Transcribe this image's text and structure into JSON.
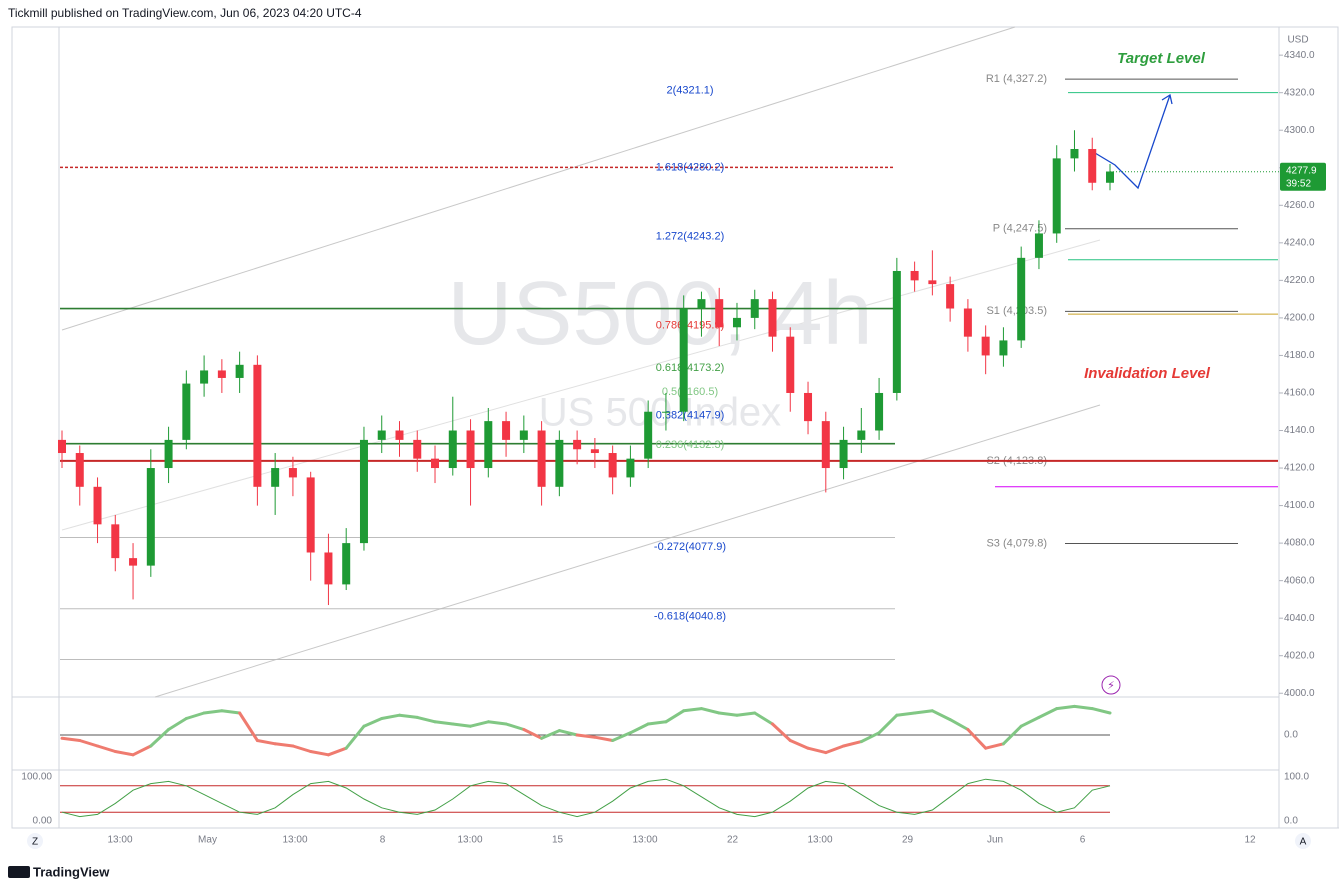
{
  "header": "Tickmill published on TradingView.com, Jun 06, 2023 04:20 UTC-4",
  "footer": "TradingView",
  "buttons": [
    "Z",
    "A"
  ],
  "chart_data": {
    "type": "candlestick",
    "title": "US500, 4h",
    "subtitle": "US 500 Index",
    "currency": "USD",
    "up_color": "#1e9a34",
    "down_color": "#f23645",
    "ylim": [
      3998,
      4355
    ],
    "yticks": [
      {
        "value": 4000,
        "label": "4000.0"
      },
      {
        "value": 4020,
        "label": "4020.0"
      },
      {
        "value": 4040,
        "label": "4040.0"
      },
      {
        "value": 4060,
        "label": "4060.0"
      },
      {
        "value": 4080,
        "label": "4080.0"
      },
      {
        "value": 4100,
        "label": "4100.0"
      },
      {
        "value": 4120,
        "label": "4120.0"
      },
      {
        "value": 4140,
        "label": "4140.0"
      },
      {
        "value": 4160,
        "label": "4160.0"
      },
      {
        "value": 4180,
        "label": "4180.0"
      },
      {
        "value": 4200,
        "label": "4200.0"
      },
      {
        "value": 4220,
        "label": "4220.0"
      },
      {
        "value": 4240,
        "label": "4240.0"
      },
      {
        "value": 4260,
        "label": "4260.0"
      },
      {
        "value": 4280,
        "label": "4280.0"
      },
      {
        "value": 4300,
        "label": "4300.0"
      },
      {
        "value": 4320,
        "label": "4320.0"
      },
      {
        "value": 4340,
        "label": "4340.0"
      }
    ],
    "last_price": 4277.9,
    "countdown": "39:52",
    "xlabels": [
      "13:00",
      "May",
      "13:00",
      "8",
      "13:00",
      "15",
      "13:00",
      "22",
      "13:00",
      "29",
      "Jun",
      "6",
      "12"
    ],
    "ohlc": [
      [
        4135,
        4140,
        4120,
        4128
      ],
      [
        4128,
        4132,
        4100,
        4110
      ],
      [
        4110,
        4115,
        4080,
        4090
      ],
      [
        4090,
        4095,
        4065,
        4072
      ],
      [
        4072,
        4080,
        4050,
        4068
      ],
      [
        4068,
        4130,
        4062,
        4120
      ],
      [
        4120,
        4142,
        4112,
        4135
      ],
      [
        4135,
        4172,
        4130,
        4165
      ],
      [
        4165,
        4180,
        4158,
        4172
      ],
      [
        4172,
        4178,
        4160,
        4168
      ],
      [
        4168,
        4182,
        4160,
        4175
      ],
      [
        4175,
        4180,
        4100,
        4110
      ],
      [
        4110,
        4128,
        4095,
        4120
      ],
      [
        4120,
        4126,
        4105,
        4115
      ],
      [
        4115,
        4118,
        4060,
        4075
      ],
      [
        4075,
        4085,
        4047,
        4058
      ],
      [
        4058,
        4088,
        4055,
        4080
      ],
      [
        4080,
        4142,
        4076,
        4135
      ],
      [
        4135,
        4148,
        4128,
        4140
      ],
      [
        4140,
        4145,
        4126,
        4135
      ],
      [
        4135,
        4140,
        4118,
        4125
      ],
      [
        4125,
        4132,
        4112,
        4120
      ],
      [
        4120,
        4158,
        4116,
        4140
      ],
      [
        4140,
        4146,
        4100,
        4120
      ],
      [
        4120,
        4152,
        4115,
        4145
      ],
      [
        4145,
        4150,
        4126,
        4135
      ],
      [
        4135,
        4148,
        4128,
        4140
      ],
      [
        4140,
        4145,
        4100,
        4110
      ],
      [
        4110,
        4140,
        4105,
        4135
      ],
      [
        4135,
        4140,
        4122,
        4130
      ],
      [
        4130,
        4136,
        4120,
        4128
      ],
      [
        4128,
        4132,
        4106,
        4115
      ],
      [
        4115,
        4132,
        4110,
        4125
      ],
      [
        4125,
        4156,
        4120,
        4150
      ],
      [
        4150,
        4160,
        4140,
        4150
      ],
      [
        4150,
        4212,
        4145,
        4205
      ],
      [
        4205,
        4214,
        4190,
        4210
      ],
      [
        4210,
        4216,
        4185,
        4195
      ],
      [
        4195,
        4208,
        4188,
        4200
      ],
      [
        4200,
        4215,
        4194,
        4210
      ],
      [
        4210,
        4214,
        4182,
        4190
      ],
      [
        4190,
        4195,
        4150,
        4160
      ],
      [
        4160,
        4166,
        4138,
        4145
      ],
      [
        4145,
        4150,
        4107,
        4120
      ],
      [
        4120,
        4142,
        4114,
        4135
      ],
      [
        4135,
        4152,
        4128,
        4140
      ],
      [
        4140,
        4168,
        4135,
        4160
      ],
      [
        4160,
        4232,
        4156,
        4225
      ],
      [
        4225,
        4230,
        4214,
        4220
      ],
      [
        4220,
        4236,
        4212,
        4218
      ],
      [
        4218,
        4222,
        4198,
        4205
      ],
      [
        4205,
        4210,
        4182,
        4190
      ],
      [
        4190,
        4196,
        4170,
        4180
      ],
      [
        4180,
        4195,
        4174,
        4188
      ],
      [
        4188,
        4238,
        4184,
        4232
      ],
      [
        4232,
        4252,
        4226,
        4245
      ],
      [
        4245,
        4292,
        4240,
        4285
      ],
      [
        4285,
        4300,
        4278,
        4290
      ],
      [
        4290,
        4296,
        4268,
        4272
      ],
      [
        4272,
        4282,
        4268,
        4278
      ]
    ],
    "fib_levels": [
      {
        "label": "2(4321.1)",
        "value": 4321.1,
        "color": "#1848cc"
      },
      {
        "label": "1.618(4280.2)",
        "value": 4280.2,
        "color": "#1848cc"
      },
      {
        "label": "1.272(4243.2)",
        "value": 4243.2,
        "color": "#1848cc"
      },
      {
        "label": "0.786(4195.9)",
        "value": 4195.9,
        "color": "#e53935"
      },
      {
        "label": "0.618(4173.2)",
        "value": 4173.2,
        "color": "#43a047"
      },
      {
        "label": "0.5(4160.5)",
        "value": 4160.5,
        "color": "#81c784"
      },
      {
        "label": "0.382(4147.9)",
        "value": 4147.9,
        "color": "#1848cc"
      },
      {
        "label": "0.236(4132.3)",
        "value": 4132.3,
        "color": "#81c784"
      },
      {
        "label": "-0.272(4077.9)",
        "value": 4077.9,
        "color": "#1848cc"
      },
      {
        "label": "-0.618(4040.8)",
        "value": 4040.8,
        "color": "#1848cc"
      }
    ],
    "fib_lines": [
      {
        "value": 4280.2,
        "color": "#c62828"
      },
      {
        "value": 4205,
        "color": "#2e7d32"
      },
      {
        "value": 4133,
        "color": "#2e7d32"
      },
      {
        "value": 4083,
        "color": "#bdbdbd"
      },
      {
        "value": 4045,
        "color": "#bdbdbd"
      },
      {
        "value": 4018,
        "color": "#bdbdbd"
      }
    ],
    "pivots": [
      {
        "label": "R1 (4,327.2)",
        "value": 4327.2
      },
      {
        "label": "P (4,247.5)",
        "value": 4247.5
      },
      {
        "label": "S1 (4,203.5)",
        "value": 4203.5
      },
      {
        "label": "S2 (4,123.8)",
        "value": 4123.8
      },
      {
        "label": "S3 (4,079.8)",
        "value": 4079.8
      }
    ],
    "extra_lines": [
      {
        "value": 4320,
        "color": "#26c281"
      },
      {
        "value": 4231,
        "color": "#26c281"
      },
      {
        "value": 4202,
        "color": "#c9a227"
      },
      {
        "value": 4110,
        "color": "#d500f9"
      },
      {
        "value": 4123.8,
        "color": "#c62828"
      }
    ],
    "annotations": [
      {
        "text": "Target Level",
        "value": 4338,
        "color": "#2e9e3e"
      },
      {
        "text": "Invalidation Level",
        "value": 4170,
        "color": "#e53935"
      }
    ],
    "oscillator": {
      "ylim": [
        -30,
        30
      ],
      "yticks": [
        {
          "value": 0,
          "label": "0.0"
        }
      ],
      "values": [
        -3,
        -5,
        -10,
        -15,
        -18,
        -10,
        5,
        15,
        20,
        22,
        20,
        -5,
        -8,
        -10,
        -15,
        -18,
        -12,
        8,
        15,
        18,
        16,
        12,
        10,
        8,
        12,
        10,
        5,
        -3,
        4,
        0,
        -2,
        -5,
        2,
        10,
        12,
        22,
        24,
        20,
        18,
        20,
        10,
        -5,
        -12,
        -16,
        -10,
        -6,
        2,
        18,
        20,
        22,
        14,
        5,
        -12,
        -8,
        8,
        16,
        24,
        26,
        24,
        20
      ]
    },
    "stochastic": {
      "ylim": [
        0,
        100
      ],
      "yticks": [
        {
          "value": 100,
          "label": "100.0"
        },
        {
          "value": 0,
          "label": "0.0"
        }
      ],
      "left_ticks": [
        {
          "value": 100,
          "label": "100.00"
        },
        {
          "value": 0,
          "label": "0.00"
        }
      ],
      "bands": [
        80,
        20
      ],
      "values": [
        20,
        10,
        15,
        40,
        70,
        85,
        90,
        80,
        60,
        40,
        20,
        15,
        30,
        60,
        85,
        90,
        75,
        50,
        30,
        20,
        15,
        25,
        50,
        80,
        90,
        85,
        60,
        35,
        20,
        10,
        20,
        45,
        75,
        90,
        95,
        80,
        55,
        30,
        15,
        10,
        20,
        45,
        75,
        90,
        85,
        60,
        35,
        20,
        15,
        25,
        55,
        85,
        95,
        90,
        70,
        40,
        20,
        30,
        70,
        80
      ]
    }
  }
}
